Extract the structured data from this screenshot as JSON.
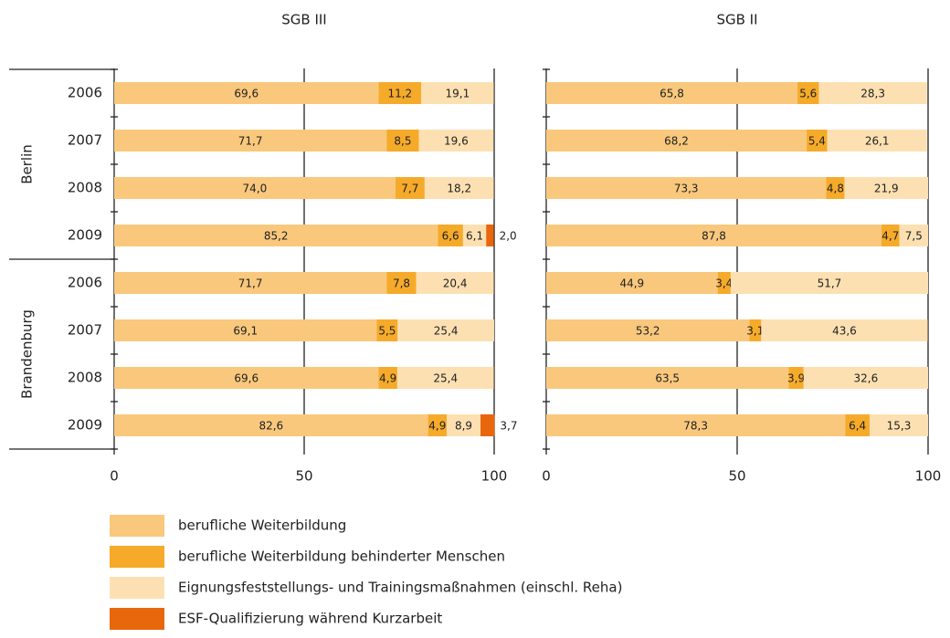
{
  "chart_data": [
    {
      "type": "stacked-bar-horizontal",
      "title": "SGB III",
      "groups": [
        "Berlin",
        "Brandenburg"
      ],
      "categories": [
        "2006",
        "2007",
        "2008",
        "2009",
        "2006",
        "2007",
        "2008",
        "2009"
      ],
      "xlim": [
        0,
        100
      ],
      "xticks": [
        0,
        50,
        100
      ],
      "grid": true,
      "series": [
        {
          "name": "berufliche Weiterbildung",
          "color": "#f9c87c",
          "values": [
            69.6,
            71.7,
            74.0,
            85.2,
            71.7,
            69.1,
            69.6,
            82.6
          ],
          "value_labels": [
            "69,6",
            "71,7",
            "74,0",
            "85,2",
            "71,7",
            "69,1",
            "69,6",
            "82,6"
          ]
        },
        {
          "name": "berufliche Weiterbildung behinderter Menschen",
          "color": "#f6aa2a",
          "values": [
            11.2,
            8.5,
            7.7,
            6.6,
            7.8,
            5.5,
            4.9,
            4.9
          ],
          "value_labels": [
            "11,2",
            "8,5",
            "7,7",
            "6,6",
            "7,8",
            "5,5",
            "4,9",
            "4,9"
          ]
        },
        {
          "name": "Eignungsfeststellungs- und Trainingsmaßnahmen (einschl. Reha)",
          "color": "#fde0b2",
          "values": [
            19.1,
            19.6,
            18.2,
            6.1,
            20.4,
            25.4,
            25.4,
            8.9
          ],
          "value_labels": [
            "19,1",
            "19,6",
            "18,2",
            "6,1",
            "20,4",
            "25,4",
            "25,4",
            "8,9"
          ]
        },
        {
          "name": "ESF-Qualifizierung während Kurzarbeit",
          "color": "#e8660c",
          "values": [
            null,
            null,
            null,
            2.0,
            null,
            null,
            null,
            3.7
          ],
          "value_labels": [
            null,
            null,
            null,
            "2,0",
            null,
            null,
            null,
            "3,7"
          ]
        }
      ]
    },
    {
      "type": "stacked-bar-horizontal",
      "title": "SGB II",
      "xlim": [
        0,
        100
      ],
      "xticks": [
        0,
        50,
        100
      ],
      "grid": true,
      "series": [
        {
          "color": "#f9c87c",
          "values": [
            65.8,
            68.2,
            73.3,
            87.8,
            44.9,
            53.2,
            63.5,
            78.3
          ],
          "value_labels": [
            "65,8",
            "68,2",
            "73,3",
            "87,8",
            "44,9",
            "53,2",
            "63,5",
            "78,3"
          ]
        },
        {
          "color": "#f6aa2a",
          "values": [
            5.6,
            5.4,
            4.8,
            4.7,
            3.4,
            3.1,
            3.9,
            6.4
          ],
          "value_labels": [
            "5,6",
            "5,4",
            "4,8",
            "4,7",
            "3,4",
            "3,1",
            "3,9",
            "6,4"
          ]
        },
        {
          "color": "#fde0b2",
          "values": [
            28.3,
            26.1,
            21.9,
            7.5,
            51.7,
            43.6,
            32.6,
            15.3
          ],
          "value_labels": [
            "28,3",
            "26,1",
            "21,9",
            "7,5",
            "51,7",
            "43,6",
            "32,6",
            "15,3"
          ]
        }
      ]
    }
  ]
}
